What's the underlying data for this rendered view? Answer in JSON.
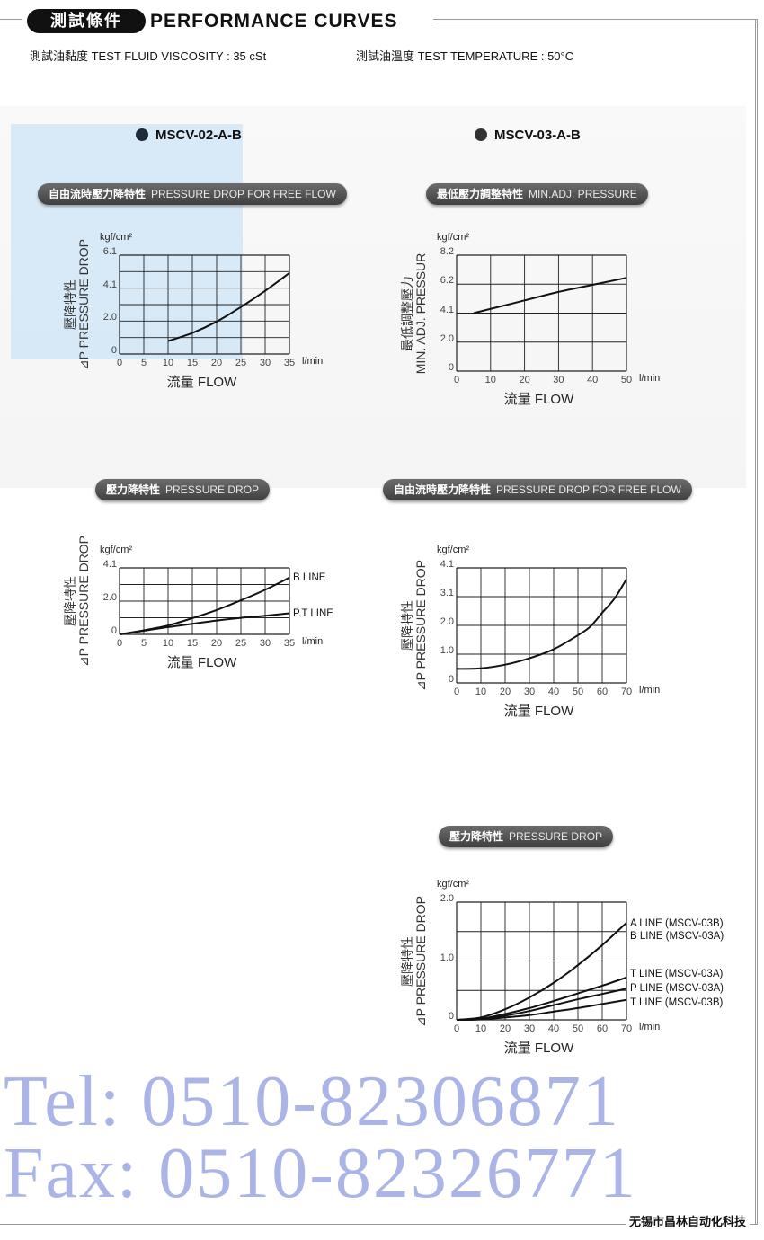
{
  "header": {
    "badge": "測試條件",
    "title": "PERFORMANCE CURVES"
  },
  "conditions": {
    "viscosity": "測試油黏度  TEST FLUID VISCOSITY : 35 cSt",
    "temperature": "測試油溫度  TEST TEMPERATURE : 50°C"
  },
  "models": [
    "MSCV-02-A-B",
    "MSCV-03-A-B"
  ],
  "sections": [
    {
      "cn": "自由流時壓力降特性",
      "en": "PRESSURE DROP  FOR FREE FLOW"
    },
    {
      "cn": "最低壓力調整特性",
      "en": "MIN.ADJ. PRESSURE"
    },
    {
      "cn": "壓力降特性",
      "en": "PRESSURE DROP"
    },
    {
      "cn": "自由流時壓力降特性",
      "en": "PRESSURE DROP  FOR FREE FLOW"
    },
    {
      "cn": "壓力降特性",
      "en": "PRESSURE DROP"
    }
  ],
  "watermark": {
    "tel": "Tel: 0510-82306871",
    "fax": "Fax: 0510-82326771"
  },
  "footer": "无锡市昌林自动化科技",
  "colors": {
    "line": "#111111",
    "grid": "#222222",
    "pill": "#4f4f4f",
    "watermark_blue": "#aab4e6"
  },
  "chart_data": [
    {
      "type": "line",
      "yunit": "kgf/cm²",
      "ylabel_cn": "壓降特性",
      "ylabel_en": "⊿P PRESSURE DROP",
      "xlabel": "流量 FLOW",
      "xunit": "l/min",
      "xlim": [
        0,
        35
      ],
      "ylim": [
        0,
        6.1
      ],
      "grid": true,
      "xticks": [
        "0",
        "5",
        "10",
        "15",
        "20",
        "25",
        "30",
        "35"
      ],
      "yticks": [
        "0",
        "2.0",
        "4.1",
        "6.1"
      ],
      "series": [
        {
          "x": [
            10,
            15,
            20,
            25,
            30,
            35
          ],
          "y": [
            0.8,
            1.3,
            2.0,
            2.9,
            3.9,
            5.0
          ]
        }
      ]
    },
    {
      "type": "line",
      "yunit": "kgf/cm²",
      "ylabel_cn": "最低調整壓力",
      "ylabel_en": "MIN. ADJ. PRESSUR",
      "xlabel": "流量 FLOW",
      "xunit": "l/min",
      "xlim": [
        0,
        50
      ],
      "ylim": [
        0,
        8.2
      ],
      "grid": true,
      "xticks": [
        "0",
        "10",
        "20",
        "30",
        "40",
        "50"
      ],
      "yticks": [
        "0",
        "2.0",
        "4.1",
        "6.2",
        "8.2"
      ],
      "series": [
        {
          "x": [
            5,
            10,
            20,
            30,
            40,
            50
          ],
          "y": [
            4.1,
            4.4,
            5.0,
            5.6,
            6.1,
            6.6
          ]
        }
      ]
    },
    {
      "type": "line",
      "yunit": "kgf/cm²",
      "ylabel_cn": "壓降特性",
      "ylabel_en": "⊿P PRESSURE DROP",
      "xlabel": "流量 FLOW",
      "xunit": "l/min",
      "xlim": [
        0,
        35
      ],
      "ylim": [
        0,
        4.1
      ],
      "grid": true,
      "xticks": [
        "0",
        "5",
        "10",
        "15",
        "20",
        "25",
        "30",
        "35"
      ],
      "yticks": [
        "0",
        "2.0",
        "4.1"
      ],
      "series": [
        {
          "name": "B LINE",
          "x": [
            0,
            5,
            10,
            15,
            20,
            25,
            30,
            35
          ],
          "y": [
            0,
            0.25,
            0.55,
            1.0,
            1.5,
            2.1,
            2.75,
            3.5
          ]
        },
        {
          "name": "P.T LINE",
          "x": [
            0,
            5,
            10,
            15,
            20,
            25,
            30,
            35
          ],
          "y": [
            0,
            0.22,
            0.45,
            0.65,
            0.85,
            1.02,
            1.15,
            1.3
          ]
        }
      ]
    },
    {
      "type": "line",
      "yunit": "kgf/cm²",
      "ylabel_cn": "壓降特性",
      "ylabel_en": "⊿P PRESSURE DROP",
      "xlabel": "流量 FLOW",
      "xunit": "l/min",
      "xlim": [
        0,
        70
      ],
      "ylim": [
        0,
        4.1
      ],
      "grid": true,
      "xticks": [
        "0",
        "10",
        "20",
        "30",
        "40",
        "50",
        "60",
        "70"
      ],
      "yticks": [
        "0",
        "1.0",
        "2.0",
        "3.1",
        "4.1"
      ],
      "series": [
        {
          "x": [
            0,
            10,
            20,
            30,
            40,
            50,
            55,
            60,
            65,
            70
          ],
          "y": [
            0.5,
            0.52,
            0.65,
            0.88,
            1.2,
            1.7,
            2.0,
            2.5,
            3.0,
            3.7
          ]
        }
      ]
    },
    {
      "type": "line",
      "yunit": "kgf/cm²",
      "ylabel_cn": "壓降特性",
      "ylabel_en": "⊿P PRESSURE DROP",
      "xlabel": "流量 FLOW",
      "xunit": "l/min",
      "xlim": [
        0,
        70
      ],
      "ylim": [
        0,
        2.0
      ],
      "grid": true,
      "xticks": [
        "0",
        "10",
        "20",
        "30",
        "40",
        "50",
        "60",
        "70"
      ],
      "yticks": [
        "0",
        "1.0",
        "2.0"
      ],
      "series": [
        {
          "name": "A LINE (MSCV-03B)\nB LINE (MSCV-03A)",
          "x": [
            0,
            10,
            20,
            30,
            40,
            50,
            60,
            70
          ],
          "y": [
            0,
            0.04,
            0.18,
            0.38,
            0.63,
            0.93,
            1.27,
            1.65
          ]
        },
        {
          "name": "T LINE (MSCV-03A)",
          "x": [
            0,
            10,
            20,
            30,
            40,
            50,
            60,
            70
          ],
          "y": [
            0,
            0.02,
            0.1,
            0.2,
            0.32,
            0.45,
            0.58,
            0.72
          ]
        },
        {
          "name": "P LINE (MSCV-03A)",
          "x": [
            0,
            10,
            20,
            30,
            40,
            50,
            60,
            70
          ],
          "y": [
            0,
            0.01,
            0.07,
            0.15,
            0.25,
            0.35,
            0.44,
            0.53
          ]
        },
        {
          "name": "T LINE (MSCV-03B)",
          "x": [
            0,
            10,
            20,
            30,
            40,
            50,
            60,
            70
          ],
          "y": [
            0,
            0.01,
            0.04,
            0.08,
            0.14,
            0.2,
            0.27,
            0.34
          ]
        }
      ]
    }
  ]
}
